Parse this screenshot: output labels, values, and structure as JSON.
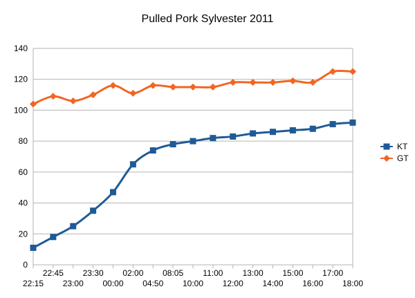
{
  "chart_data": {
    "type": "line",
    "title": "Pulled Pork Sylvester 2011",
    "xlabel": "",
    "ylabel": "",
    "ylim": [
      0,
      140
    ],
    "yticks": [
      0,
      20,
      40,
      60,
      80,
      100,
      120,
      140
    ],
    "categories": [
      "22:15",
      "22:45",
      "23:00",
      "23:30",
      "00:00",
      "02:00",
      "04:50",
      "08:05",
      "10:00",
      "11:00",
      "12:00",
      "13:00",
      "14:00",
      "15:00",
      "16:00",
      "17:00",
      "18:00"
    ],
    "x_tick_labels_upper": [
      "22:45",
      "23:30",
      "02:00",
      "08:05",
      "11:00",
      "13:00",
      "15:00",
      "17:00"
    ],
    "x_tick_labels_lower": [
      "22:15",
      "23:00",
      "00:00",
      "04:50",
      "10:00",
      "12:00",
      "14:00",
      "16:00",
      "18:00"
    ],
    "grid": "horizontal",
    "legend_position": "right",
    "series": [
      {
        "name": "KT",
        "color": "#1f5a96",
        "marker": "square",
        "values": [
          11,
          18,
          25,
          35,
          47,
          65,
          74,
          78,
          80,
          82,
          83,
          85,
          86,
          87,
          88,
          91,
          92
        ]
      },
      {
        "name": "GT",
        "color": "#f26522",
        "marker": "diamond",
        "values": [
          104,
          109,
          106,
          110,
          116,
          111,
          116,
          115,
          115,
          115,
          118,
          118,
          118,
          119,
          118,
          125,
          125
        ]
      }
    ]
  }
}
